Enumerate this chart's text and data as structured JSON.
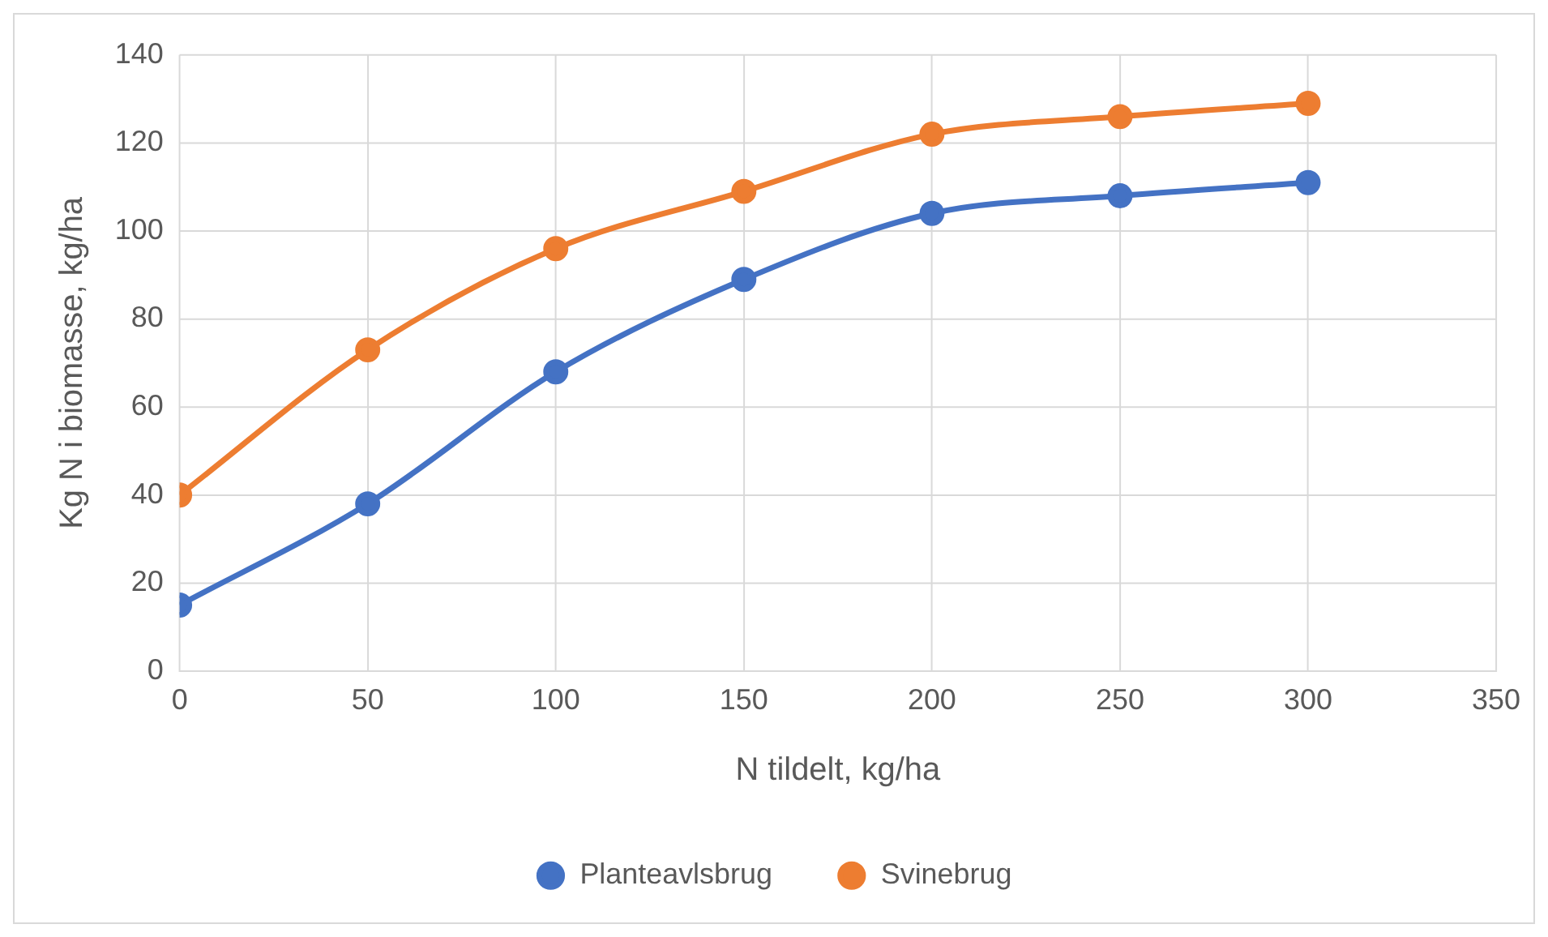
{
  "chart_data": {
    "type": "line",
    "xlabel": "N tildelt, kg/ha",
    "ylabel": "Kg N i biomasse, kg/ha",
    "x": [
      0,
      50,
      100,
      150,
      200,
      250,
      300
    ],
    "series": [
      {
        "name": "Planteavlsbrug",
        "color": "#4472c4",
        "values": [
          15,
          38,
          68,
          89,
          104,
          108,
          111
        ]
      },
      {
        "name": "Svinebrug",
        "color": "#ed7d31",
        "values": [
          40,
          73,
          96,
          109,
          122,
          126,
          129
        ]
      }
    ],
    "xlim": [
      0,
      350
    ],
    "xticks": [
      0,
      50,
      100,
      150,
      200,
      250,
      300,
      350
    ],
    "ylim": [
      0,
      140
    ],
    "yticks": [
      0,
      20,
      40,
      60,
      80,
      100,
      120,
      140
    ],
    "grid": true,
    "legend": "bottom",
    "marker": "circle",
    "line_style": "solid"
  }
}
